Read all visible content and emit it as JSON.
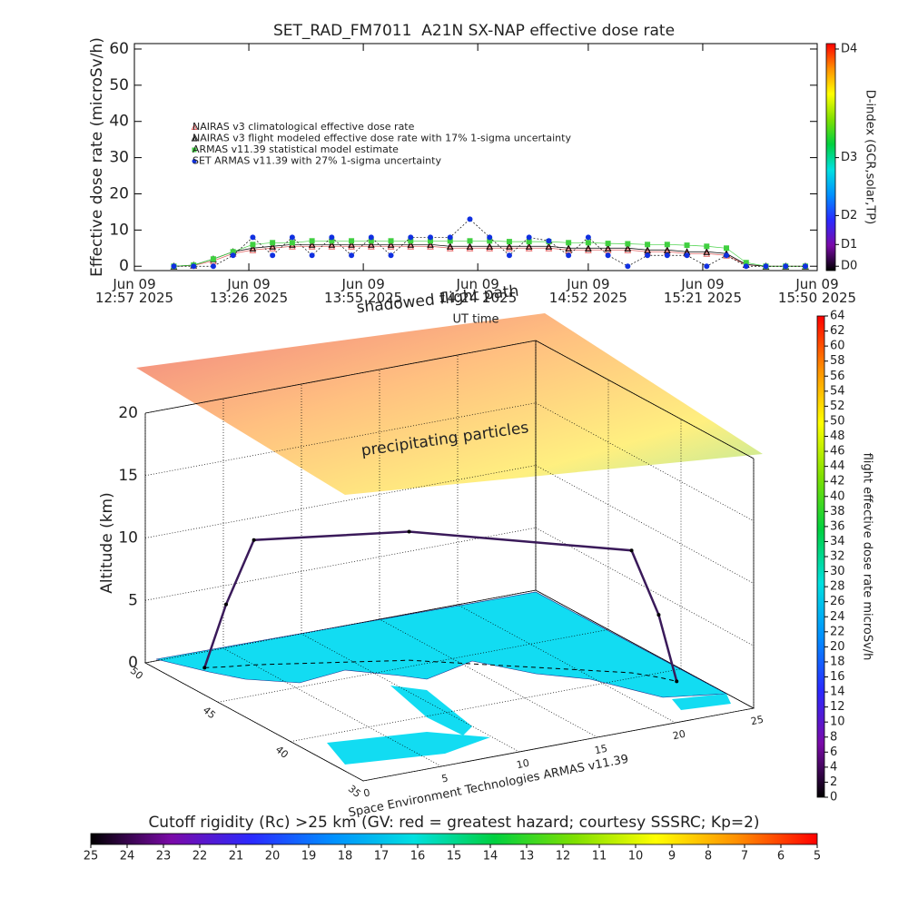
{
  "chart_data": [
    {
      "type": "line",
      "title": "SET_RAD_FM7011  A21N SX-NAP effective dose rate",
      "y_label": "Effective dose rate (microSv/h)",
      "x_label": "UT time",
      "x": [
        "2025-06-09 12:57",
        "2025-06-09 13:02",
        "2025-06-09 13:07",
        "2025-06-09 13:12",
        "2025-06-09 13:17",
        "2025-06-09 13:22",
        "2025-06-09 13:27",
        "2025-06-09 13:32",
        "2025-06-09 13:37",
        "2025-06-09 13:42",
        "2025-06-09 13:47",
        "2025-06-09 13:52",
        "2025-06-09 13:57",
        "2025-06-09 14:02",
        "2025-06-09 14:07",
        "2025-06-09 14:12",
        "2025-06-09 14:17",
        "2025-06-09 14:22",
        "2025-06-09 14:27",
        "2025-06-09 14:32",
        "2025-06-09 14:37",
        "2025-06-09 14:42",
        "2025-06-09 14:47",
        "2025-06-09 14:52",
        "2025-06-09 14:57",
        "2025-06-09 15:02",
        "2025-06-09 15:07",
        "2025-06-09 15:12",
        "2025-06-09 15:17",
        "2025-06-09 15:22",
        "2025-06-09 15:27",
        "2025-06-09 15:32",
        "2025-06-09 15:37",
        "2025-06-09 15:42",
        "2025-06-09 15:47"
      ],
      "xlim": [
        "2025-06-09 12:57",
        "2025-06-09 15:50"
      ],
      "xticks": [
        {
          "value": "2025-06-09 12:57",
          "label": "Jun 09\n12:57 2025"
        },
        {
          "value": "2025-06-09 13:26",
          "label": "Jun 09\n13:26 2025"
        },
        {
          "value": "2025-06-09 13:55",
          "label": "Jun 09\n13:55 2025"
        },
        {
          "value": "2025-06-09 14:24",
          "label": "Jun 09\n14:24 2025"
        },
        {
          "value": "2025-06-09 14:52",
          "label": "Jun 09\n14:52 2025"
        },
        {
          "value": "2025-06-09 15:21",
          "label": "Jun 09\n15:21 2025"
        },
        {
          "value": "2025-06-09 15:50",
          "label": "Jun 09\n15:50 2025"
        }
      ],
      "ylim": [
        -1.2,
        61.5
      ],
      "yticks": [
        0,
        10,
        20,
        30,
        40,
        50,
        60
      ],
      "legend": "upper left",
      "series": [
        {
          "name": "NAIRAS v3 climatological effective dose rate",
          "color": "#e06060",
          "marker": "triangle",
          "values": [
            null,
            null,
            0,
            0.2,
            1.5,
            3.5,
            4.5,
            5,
            5.5,
            5.5,
            5.5,
            5.5,
            5.5,
            5.5,
            5.5,
            5.5,
            5,
            5,
            5,
            5,
            5,
            5,
            4.5,
            4.5,
            4.5,
            4.5,
            4,
            4,
            3.5,
            3.5,
            3,
            0.4,
            0,
            0,
            0
          ]
        },
        {
          "name": "NAIRAS v3 flight modeled effective dose rate with 17% 1-sigma uncertainty",
          "color": "#000000",
          "marker": "triangle",
          "values": [
            null,
            null,
            0,
            0.3,
            2,
            4,
            5,
            5.5,
            6,
            6,
            6,
            6,
            6,
            6,
            6,
            6,
            5.5,
            5.5,
            5.5,
            5.5,
            5.5,
            5.5,
            5,
            5,
            5,
            5,
            4.5,
            4.5,
            4,
            4,
            3.5,
            0.5,
            0,
            0,
            0
          ]
        },
        {
          "name": "ARMAS v11.39 statistical model estimate",
          "color": "#40d040",
          "marker": "square",
          "values": [
            null,
            null,
            0,
            0.3,
            2,
            4,
            6,
            6.5,
            6.5,
            7,
            7,
            7,
            7,
            7,
            7,
            7,
            7,
            7,
            7,
            6.8,
            6.8,
            6.8,
            6.5,
            6.5,
            6.3,
            6.2,
            6,
            6,
            5.8,
            5.5,
            5,
            1,
            0,
            0,
            0
          ]
        },
        {
          "name": "SET ARMAS v11.39 with 27% 1-sigma uncertainty",
          "color": "#1030e0",
          "marker": "circle",
          "values": [
            null,
            null,
            0,
            0,
            0,
            3,
            8,
            3,
            8,
            3,
            8,
            3,
            8,
            3,
            8,
            8,
            8,
            13,
            8,
            3,
            8,
            7,
            3,
            8,
            3,
            0,
            3,
            3,
            3,
            0,
            3,
            0,
            0,
            0,
            0
          ]
        }
      ]
    },
    {
      "type": "colorbar",
      "orientation": "vertical",
      "label": "D-index (GCR,solar,TP)",
      "ylim": [
        -1.2,
        61.5
      ],
      "yticks": [
        {
          "value": 0,
          "label": "D0"
        },
        {
          "value": 6,
          "label": "D1"
        },
        {
          "value": 14,
          "label": "D2"
        },
        {
          "value": 30,
          "label": "D3"
        },
        {
          "value": 60,
          "label": "D4"
        }
      ],
      "colormap": [
        "#000000",
        "#7a0aa8",
        "#2a2aff",
        "#0090ff",
        "#00e0e0",
        "#00d040",
        "#80e000",
        "#ffff00",
        "#ff9000",
        "#ff0000"
      ]
    },
    {
      "type": "3d-map",
      "z_label": "Altitude (km)",
      "annotations": [
        "shadowed flight path",
        "precipitating particles"
      ],
      "credit": "Space Environment Technologies ARMAS v11.39",
      "xlim": [
        0,
        25
      ],
      "xticks": [
        0,
        5,
        10,
        15,
        20,
        25
      ],
      "ylim": [
        35,
        50
      ],
      "yticks": [
        35,
        40,
        45,
        50
      ],
      "zlim": [
        0,
        20
      ],
      "zticks": [
        0,
        5,
        10,
        15,
        20
      ],
      "flight_path": {
        "color": "#3a1a5a",
        "x": [
          2.4,
          3.5,
          5.0,
          12.8,
          22.3,
          23.2,
          23.7
        ],
        "y": [
          48.5,
          48.2,
          47.9,
          45.6,
          40.5,
          39.6,
          38.9
        ],
        "z": [
          0,
          5,
          10,
          10.3,
          9.8,
          5,
          0
        ]
      }
    },
    {
      "type": "colorbar",
      "orientation": "vertical",
      "label": "flight effective dose rate microSv/h",
      "ylim": [
        0,
        64
      ],
      "yticks": [
        0,
        2,
        4,
        6,
        8,
        10,
        12,
        14,
        16,
        18,
        20,
        22,
        24,
        26,
        28,
        30,
        32,
        34,
        36,
        38,
        40,
        42,
        44,
        46,
        48,
        50,
        52,
        54,
        56,
        58,
        60,
        62,
        64
      ],
      "colormap": [
        "#000000",
        "#7a0aa8",
        "#2a2aff",
        "#0090ff",
        "#00e0e0",
        "#00d040",
        "#80e000",
        "#ffff00",
        "#ff9000",
        "#ff0000"
      ]
    },
    {
      "type": "colorbar",
      "orientation": "horizontal",
      "label": "Cutoff rigidity (Rc) >25 km (GV: red = greatest hazard; courtesy SSSRC; Kp=2)",
      "xlim": [
        25,
        5
      ],
      "xticks": [
        25,
        24,
        23,
        22,
        21,
        20,
        19,
        18,
        17,
        16,
        15,
        14,
        13,
        12,
        11,
        10,
        9,
        8,
        7,
        6,
        5
      ],
      "colormap": [
        "#000000",
        "#7a0aa8",
        "#2a2aff",
        "#0090ff",
        "#00e0e0",
        "#00d040",
        "#80e000",
        "#ffff00",
        "#ff9000",
        "#ff0000"
      ]
    }
  ]
}
